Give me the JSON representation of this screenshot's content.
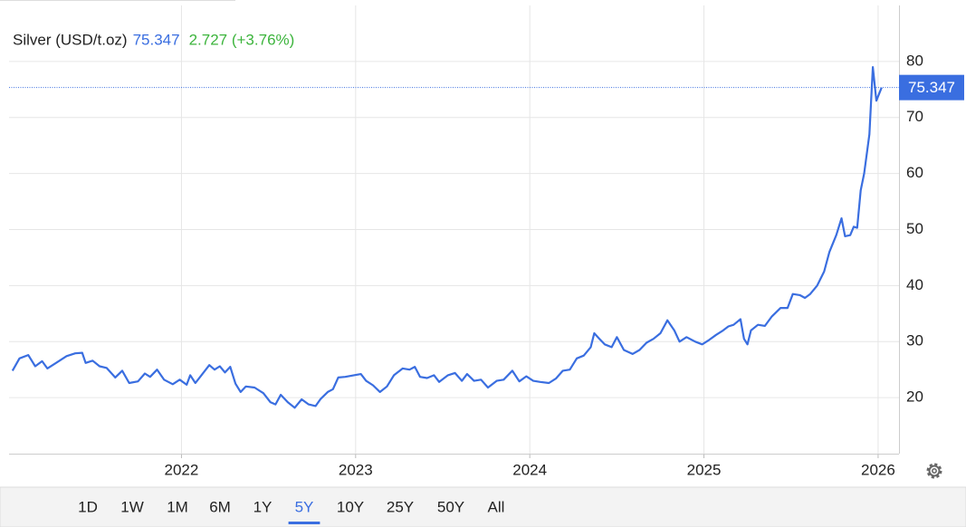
{
  "chart_data": {
    "type": "line",
    "title": "Silver (USD/t.oz)",
    "current": 75.347,
    "change_text": "2.727 (+3.76%)",
    "x": [
      2021.03,
      2021.07,
      2021.12,
      2021.16,
      2021.2,
      2021.23,
      2021.28,
      2021.34,
      2021.39,
      2021.43,
      2021.45,
      2021.49,
      2021.53,
      2021.57,
      2021.62,
      2021.66,
      2021.7,
      2021.75,
      2021.79,
      2021.82,
      2021.86,
      2021.9,
      2021.95,
      2021.99,
      2022.03,
      2022.05,
      2022.08,
      2022.11,
      2022.16,
      2022.19,
      2022.22,
      2022.25,
      2022.28,
      2022.31,
      2022.34,
      2022.37,
      2022.42,
      2022.47,
      2022.51,
      2022.54,
      2022.57,
      2022.61,
      2022.65,
      2022.69,
      2022.73,
      2022.77,
      2022.8,
      2022.84,
      2022.87,
      2022.9,
      2022.94,
      2022.99,
      2023.03,
      2023.06,
      2023.1,
      2023.14,
      2023.18,
      2023.22,
      2023.27,
      2023.31,
      2023.34,
      2023.37,
      2023.41,
      2023.45,
      2023.48,
      2023.53,
      2023.57,
      2023.61,
      2023.64,
      2023.68,
      2023.72,
      2023.76,
      2023.81,
      2023.85,
      2023.9,
      2023.94,
      2023.98,
      2024.02,
      2024.06,
      2024.11,
      2024.15,
      2024.19,
      2024.23,
      2024.27,
      2024.31,
      2024.35,
      2024.37,
      2024.4,
      2024.43,
      2024.47,
      2024.5,
      2024.54,
      2024.59,
      2024.63,
      2024.67,
      2024.71,
      2024.75,
      2024.79,
      2024.83,
      2024.86,
      2024.9,
      2024.95,
      2024.99,
      2025.03,
      2025.07,
      2025.11,
      2025.14,
      2025.17,
      2025.21,
      2025.23,
      2025.25,
      2025.27,
      2025.31,
      2025.35,
      2025.39,
      2025.44,
      2025.48,
      2025.51,
      2025.55,
      2025.58,
      2025.61,
      2025.65,
      2025.69,
      2025.72,
      2025.76,
      2025.79,
      2025.81,
      2025.84,
      2025.86,
      2025.88,
      2025.9,
      2025.92,
      2025.95,
      2025.97,
      2025.99,
      2026.02
    ],
    "series": [
      {
        "name": "Silver",
        "color": "#3a6ee0",
        "values": [
          24.8,
          27.0,
          27.6,
          25.6,
          26.5,
          25.2,
          26.2,
          27.4,
          27.9,
          28.0,
          26.2,
          26.6,
          25.6,
          25.3,
          23.6,
          24.8,
          22.6,
          22.9,
          24.3,
          23.7,
          25.0,
          23.2,
          22.4,
          23.2,
          22.3,
          24.0,
          22.6,
          23.8,
          25.8,
          25.0,
          25.6,
          24.5,
          25.5,
          22.5,
          21.0,
          22.0,
          21.8,
          20.8,
          19.2,
          18.8,
          20.5,
          19.2,
          18.2,
          19.7,
          18.8,
          18.5,
          19.8,
          21.0,
          21.5,
          23.6,
          23.7,
          24.0,
          24.2,
          23.0,
          22.2,
          21.0,
          22.0,
          24.0,
          25.2,
          25.0,
          25.5,
          23.7,
          23.5,
          24.0,
          22.8,
          24.0,
          24.4,
          23.0,
          24.2,
          23.0,
          23.2,
          21.8,
          23.0,
          23.2,
          24.8,
          22.9,
          23.8,
          23.0,
          22.8,
          22.6,
          23.4,
          24.8,
          25.0,
          27.0,
          27.5,
          29.0,
          31.5,
          30.5,
          29.5,
          29.0,
          30.8,
          28.5,
          27.8,
          28.5,
          29.8,
          30.5,
          31.5,
          33.8,
          32.0,
          30.0,
          30.8,
          30.0,
          29.5,
          30.3,
          31.2,
          32.0,
          32.7,
          33.0,
          34.0,
          30.5,
          29.5,
          32.0,
          33.0,
          32.8,
          34.5,
          36.0,
          36.0,
          38.5,
          38.3,
          37.8,
          38.5,
          40.0,
          42.5,
          46.0,
          49.0,
          52.0,
          48.8,
          49.0,
          50.5,
          50.3,
          57.0,
          60.0,
          67.0,
          79.0,
          73.0,
          75.347
        ]
      }
    ],
    "xlim": [
      2021.01,
      2026.12
    ],
    "xticks": [
      2022,
      2023,
      2024,
      2025,
      2026
    ],
    "ylim": [
      10,
      90
    ],
    "yticks": [
      20,
      30,
      40,
      50,
      60,
      70,
      80
    ],
    "grid": true,
    "ranges": [
      "1D",
      "1W",
      "1M",
      "6M",
      "1Y",
      "5Y",
      "10Y",
      "25Y",
      "50Y",
      "All"
    ],
    "active_range_index": 5
  }
}
